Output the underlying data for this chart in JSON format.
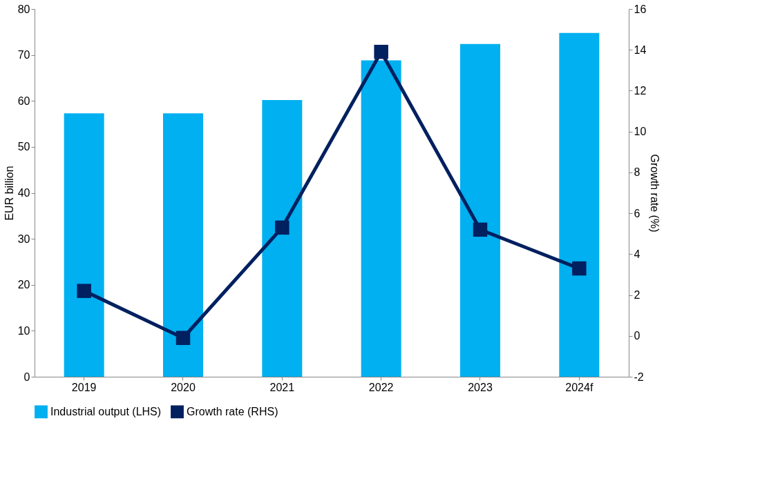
{
  "chart_data": {
    "type": "bar",
    "categories": [
      "2019",
      "2020",
      "2021",
      "2022",
      "2023",
      "2024f"
    ],
    "ylabel": "EUR billion",
    "y2label": "Growth rate (%)",
    "ylim": [
      0,
      80
    ],
    "yticks": [
      0,
      10,
      20,
      30,
      40,
      50,
      60,
      70,
      80
    ],
    "y2lim": [
      -2,
      16
    ],
    "y2ticks": [
      -2,
      0,
      2,
      4,
      6,
      8,
      10,
      12,
      14,
      16
    ],
    "series": [
      {
        "name": "Industrial output (LHS)",
        "color": "#00b0f0",
        "values": [
          57.3,
          57.3,
          60.2,
          68.8,
          72.4,
          74.8
        ]
      },
      {
        "name": "Growth rate (RHS)",
        "type": "line",
        "axis": "y2",
        "color": "#002060",
        "marker": "square",
        "values": [
          2.2,
          -0.1,
          5.3,
          13.9,
          5.2,
          3.3
        ]
      }
    ],
    "legend": "bottom",
    "grid": false
  }
}
